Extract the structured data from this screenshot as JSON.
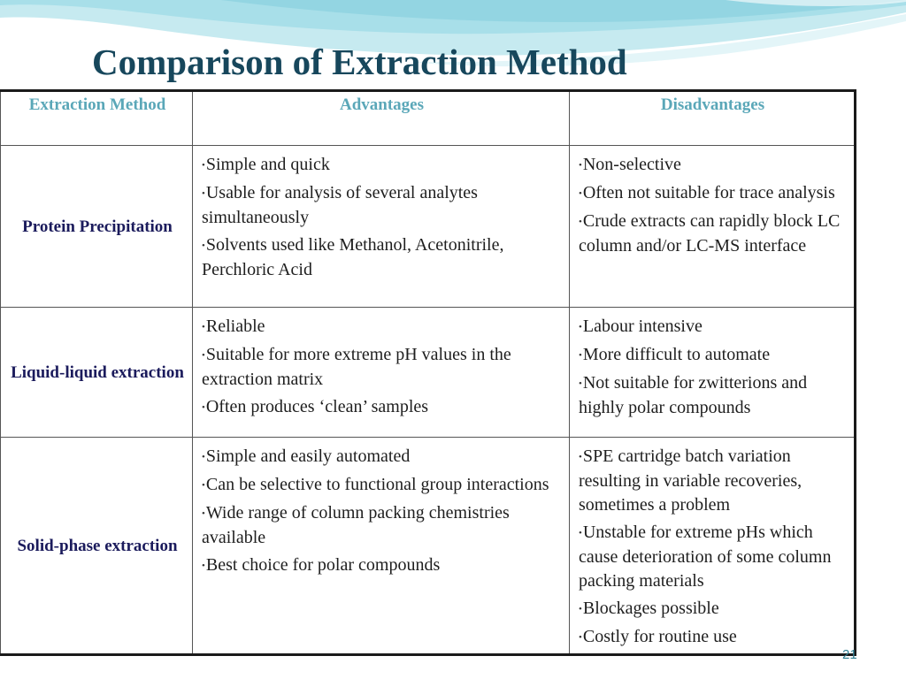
{
  "slide": {
    "title": "Comparison of Extraction Method",
    "page_number": "21"
  },
  "table": {
    "headers": [
      "Extraction Method",
      "Advantages",
      "Disadvantages"
    ],
    "rows": [
      {
        "method": "Protein Precipitation",
        "advantages": [
          "Simple and quick",
          "Usable for analysis of several  analytes simultaneously",
          "Solvents used  like Methanol, Acetonitrile, Perchloric Acid"
        ],
        "disadvantages": [
          "Non-selective",
          "Often not suitable for trace analysis",
          "Crude extracts can rapidly block LC column and/or LC-MS interface"
        ]
      },
      {
        "method": "Liquid-liquid extraction",
        "advantages": [
          "Reliable",
          "Suitable for more extreme pH values in the extraction matrix",
          "Often produces ‘clean’ samples"
        ],
        "disadvantages": [
          "Labour intensive",
          "More difficult to automate",
          "Not suitable for zwitterions and highly polar compounds"
        ]
      },
      {
        "method": "Solid-phase extraction",
        "advantages": [
          "Simple and easily automated",
          "Can be selective to functional group interactions",
          "Wide range of column packing chemistries available",
          "Best choice for polar compounds"
        ],
        "disadvantages": [
          "SPE cartridge batch variation resulting in variable recoveries, sometimes a problem",
          "Unstable for extreme pHs which cause deterioration of some column packing materials",
          "Blockages possible",
          "Costly for routine use"
        ]
      }
    ]
  },
  "colors": {
    "title": "#17475c",
    "header_text": "#5aa7b8",
    "method_text": "#1b1b5c",
    "wave_light": "#c6eaf0",
    "wave_mid": "#8fd3e0"
  }
}
